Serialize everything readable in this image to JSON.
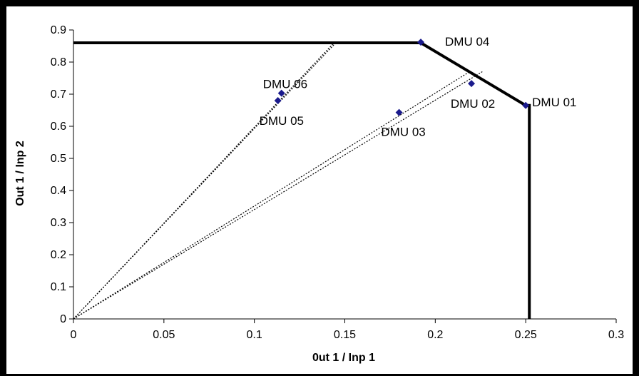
{
  "chart_data": {
    "type": "scatter",
    "title": "",
    "xlabel": "0ut 1 / Inp 1",
    "ylabel": "Out 1 / Inp 2",
    "xlim": [
      0,
      0.3
    ],
    "ylim": [
      0,
      0.9
    ],
    "x_ticks": [
      "0",
      "0.05",
      "0.1",
      "0.15",
      "0.2",
      "0.25",
      "0.3"
    ],
    "y_ticks": [
      "0",
      "0.1",
      "0.2",
      "0.3",
      "0.4",
      "0.5",
      "0.6",
      "0.7",
      "0.8",
      "0.9"
    ],
    "grid": false,
    "points": [
      {
        "label": "DMU 01",
        "x": 0.25,
        "y": 0.665
      },
      {
        "label": "DMU 02",
        "x": 0.22,
        "y": 0.733
      },
      {
        "label": "DMU 03",
        "x": 0.18,
        "y": 0.643
      },
      {
        "label": "DMU 04",
        "x": 0.192,
        "y": 0.862
      },
      {
        "label": "DMU 05",
        "x": 0.113,
        "y": 0.68
      },
      {
        "label": "DMU 06",
        "x": 0.115,
        "y": 0.703
      }
    ],
    "frontier": [
      {
        "x": 0,
        "y": 0.86
      },
      {
        "x": 0.192,
        "y": 0.86
      },
      {
        "x": 0.25,
        "y": 0.665
      },
      {
        "x": 0.252,
        "y": 0.665
      },
      {
        "x": 0.252,
        "y": 0
      }
    ],
    "projection_rays": [
      {
        "to": {
          "x": 0.145,
          "y": 0.86
        }
      },
      {
        "to": {
          "x": 0.144,
          "y": 0.86
        }
      },
      {
        "to": {
          "x": 0.219,
          "y": 0.77
        }
      },
      {
        "to": {
          "x": 0.226,
          "y": 0.77
        }
      }
    ],
    "colors": {
      "points": "#1a1a8c",
      "frontier": "#000000",
      "rays": "#000000"
    }
  }
}
